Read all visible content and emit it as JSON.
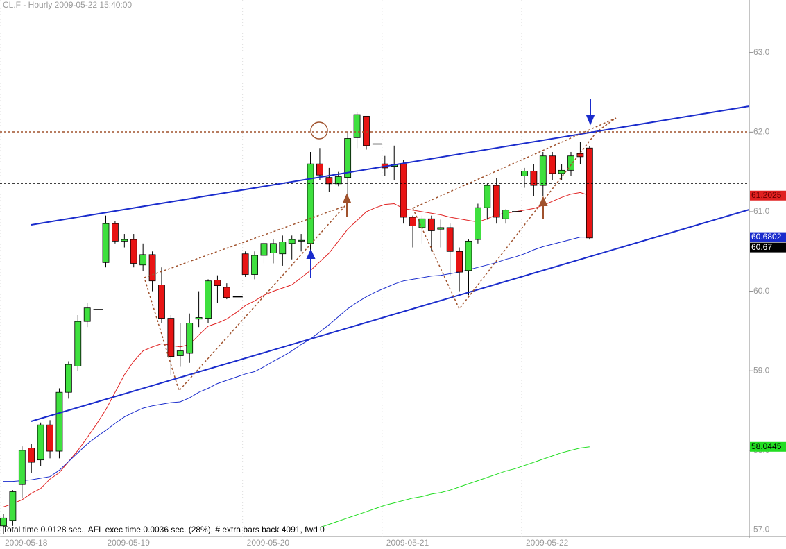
{
  "chart_data": {
    "type": "candlestick",
    "title": "CL.F - Hourly 2009-05-22 15:40:00",
    "footer": "Total time 0.0128 sec., AFL exec time 0.0036 sec. (28%), # extra bars back 4091, fwd 0",
    "categories": [
      "2009-05-18",
      null,
      null,
      null,
      null,
      null,
      null,
      null,
      null,
      null,
      null,
      "2009-05-19",
      null,
      null,
      null,
      null,
      null,
      null,
      null,
      null,
      null,
      null,
      null,
      null,
      null,
      null,
      "2009-05-20",
      null,
      null,
      null,
      null,
      null,
      null,
      null,
      null,
      null,
      null,
      null,
      null,
      null,
      null,
      "2009-05-21",
      null,
      null,
      null,
      null,
      null,
      null,
      null,
      null,
      null,
      null,
      null,
      null,
      null,
      null,
      "2009-05-22",
      null,
      null,
      null,
      null,
      null,
      null,
      null
    ],
    "open": [
      57.05,
      57.12,
      57.57,
      58.03,
      57.88,
      58.32,
      57.99,
      58.73,
      59.06,
      59.62,
      59.77,
      60.36,
      60.85,
      60.63,
      60.65,
      60.33,
      60.46,
      60.08,
      59.66,
      59.19,
      59.22,
      59.65,
      59.66,
      60.14,
      60.05,
      59.93,
      60.47,
      60.21,
      60.45,
      60.48,
      60.47,
      60.6,
      60.63,
      60.6,
      61.6,
      61.43,
      61.35,
      61.43,
      61.93,
      62.2,
      61.85,
      61.6,
      61.57,
      61.6,
      60.93,
      60.8,
      60.91,
      60.78,
      60.8,
      60.5,
      60.26,
      60.65,
      61.05,
      61.33,
      60.91,
      61.0,
      61.45,
      61.51,
      61.33,
      61.7,
      61.48,
      61.52,
      61.73,
      61.8
    ],
    "high": [
      57.2,
      57.5,
      58.05,
      58.08,
      58.35,
      58.38,
      58.78,
      59.12,
      59.7,
      59.85,
      59.77,
      60.95,
      60.88,
      60.72,
      60.72,
      60.6,
      60.5,
      60.3,
      59.7,
      59.6,
      59.72,
      60.0,
      60.15,
      60.2,
      60.1,
      59.93,
      60.5,
      60.5,
      60.63,
      60.65,
      60.7,
      60.7,
      60.72,
      61.75,
      61.8,
      61.55,
      61.5,
      62.0,
      62.25,
      62.2,
      61.85,
      61.7,
      61.83,
      61.65,
      60.95,
      60.95,
      60.95,
      60.9,
      60.85,
      60.55,
      60.65,
      61.1,
      61.35,
      61.42,
      61.03,
      61.0,
      61.55,
      61.6,
      61.75,
      61.75,
      61.6,
      61.75,
      61.88,
      61.82
    ],
    "low": [
      56.95,
      57.05,
      57.4,
      57.72,
      57.8,
      57.9,
      57.9,
      58.65,
      59.0,
      59.55,
      59.77,
      60.3,
      60.6,
      60.55,
      60.3,
      60.25,
      60.0,
      59.6,
      58.95,
      59.05,
      59.1,
      59.55,
      59.6,
      59.85,
      59.9,
      59.93,
      60.18,
      60.15,
      60.35,
      60.35,
      60.32,
      60.4,
      60.5,
      60.5,
      61.4,
      61.25,
      61.32,
      61.15,
      61.8,
      61.78,
      61.85,
      61.45,
      61.4,
      60.85,
      60.55,
      60.6,
      60.5,
      60.55,
      60.2,
      60.0,
      59.95,
      60.6,
      60.9,
      60.85,
      60.85,
      61.0,
      61.3,
      61.2,
      61.2,
      61.4,
      61.4,
      61.45,
      61.6,
      60.65
    ],
    "close": [
      57.15,
      57.48,
      58.0,
      57.85,
      58.32,
      57.99,
      58.73,
      59.08,
      59.62,
      59.79,
      59.77,
      60.85,
      60.63,
      60.65,
      60.35,
      60.46,
      60.13,
      59.66,
      59.18,
      59.25,
      59.6,
      59.67,
      60.13,
      60.07,
      59.92,
      59.93,
      60.21,
      60.45,
      60.6,
      60.6,
      60.62,
      60.65,
      60.64,
      61.6,
      61.46,
      61.35,
      61.44,
      61.92,
      62.22,
      61.83,
      61.85,
      61.55,
      61.59,
      60.93,
      60.82,
      60.91,
      60.76,
      60.8,
      60.5,
      60.24,
      60.63,
      61.05,
      61.33,
      60.93,
      61.02,
      61.0,
      61.51,
      61.33,
      61.7,
      61.48,
      61.52,
      61.7,
      61.69,
      60.67
    ],
    "up_color": "#3ee03e",
    "down_color": "#e81414",
    "series": [
      {
        "color": "#e02020",
        "values": [
          57.29,
          57.33,
          57.38,
          57.46,
          57.52,
          57.64,
          57.72,
          57.86,
          58.0,
          58.16,
          58.33,
          58.51,
          58.73,
          58.95,
          59.12,
          59.25,
          59.3,
          59.34,
          59.32,
          59.3,
          59.33,
          59.45,
          59.56,
          59.6,
          59.65,
          59.73,
          59.82,
          59.88,
          59.95,
          60.0,
          60.04,
          60.08,
          60.17,
          60.26,
          60.37,
          60.48,
          60.63,
          60.78,
          60.89,
          61.0,
          61.05,
          61.09,
          61.1,
          61.04,
          61.02,
          61.0,
          60.98,
          60.96,
          60.93,
          60.91,
          60.89,
          60.87,
          60.91,
          60.96,
          60.98,
          61.0,
          61.02,
          61.04,
          61.08,
          61.13,
          61.18,
          61.22,
          61.24,
          61.2025
        ]
      },
      {
        "color": "#1a2ccc",
        "values": [
          57.61,
          57.61,
          57.62,
          57.63,
          57.65,
          57.67,
          57.75,
          57.86,
          57.97,
          58.08,
          58.17,
          58.25,
          58.34,
          58.42,
          58.48,
          58.53,
          58.56,
          58.58,
          58.6,
          58.61,
          58.66,
          58.73,
          58.78,
          58.84,
          58.88,
          58.92,
          58.96,
          58.99,
          59.05,
          59.12,
          59.18,
          59.25,
          59.33,
          59.4,
          59.49,
          59.58,
          59.68,
          59.78,
          59.86,
          59.93,
          59.99,
          60.04,
          60.09,
          60.13,
          60.15,
          60.17,
          60.19,
          60.2,
          60.22,
          60.24,
          60.27,
          60.3,
          60.33,
          60.36,
          60.4,
          60.43,
          60.47,
          60.52,
          60.56,
          60.59,
          60.62,
          60.65,
          60.68,
          60.6802
        ]
      },
      {
        "color": "#22dd22",
        "values": [
          null,
          null,
          null,
          null,
          null,
          null,
          null,
          null,
          null,
          null,
          null,
          null,
          null,
          null,
          null,
          null,
          null,
          null,
          null,
          null,
          null,
          null,
          null,
          null,
          null,
          null,
          null,
          null,
          null,
          null,
          null,
          null,
          null,
          null,
          57.03,
          57.07,
          57.11,
          57.15,
          57.19,
          57.23,
          57.27,
          57.31,
          57.34,
          57.37,
          57.4,
          57.42,
          57.45,
          57.47,
          57.5,
          57.54,
          57.58,
          57.62,
          57.66,
          57.7,
          57.74,
          57.77,
          57.81,
          57.85,
          57.89,
          57.93,
          57.97,
          58.0,
          58.03,
          58.0445
        ]
      }
    ],
    "ylim": [
      56.9,
      63.66
    ],
    "yticks": [
      {
        "value": 57,
        "label": "57.0"
      },
      {
        "value": 58,
        "label": "58.0"
      },
      {
        "value": 59,
        "label": "59.0"
      },
      {
        "value": 60,
        "label": "60.0"
      },
      {
        "value": 61,
        "label": "61.0"
      },
      {
        "value": 62,
        "label": "62.0"
      },
      {
        "value": 63,
        "label": "63.0"
      }
    ]
  }
}
